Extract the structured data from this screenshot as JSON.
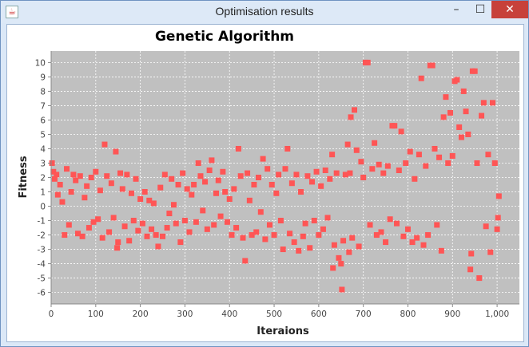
{
  "window": {
    "title": "Optimisation results",
    "minimize_symbol": "–",
    "maximize_symbol": "☐",
    "close_symbol": "✕",
    "app_icon": "java-icon"
  },
  "colors": {
    "plot_bg": "#c0c0c0",
    "point": "#ff5555",
    "titlebar": "#dde9f7",
    "close_button": "#c7413a"
  },
  "chart_data": {
    "type": "scatter",
    "title": "Genetic Algorithm",
    "xlabel": "Iteraions",
    "ylabel": "Fitness",
    "xlim": [
      0,
      1050
    ],
    "ylim": [
      -6.8,
      10.8
    ],
    "x_ticks": [
      {
        "value": 0,
        "label": "0"
      },
      {
        "value": 100,
        "label": "100"
      },
      {
        "value": 200,
        "label": "200"
      },
      {
        "value": 300,
        "label": "300"
      },
      {
        "value": 400,
        "label": "400"
      },
      {
        "value": 500,
        "label": "500"
      },
      {
        "value": 600,
        "label": "600"
      },
      {
        "value": 700,
        "label": "700"
      },
      {
        "value": 800,
        "label": "800"
      },
      {
        "value": 900,
        "label": "900"
      },
      {
        "value": 1000,
        "label": "1,000"
      }
    ],
    "y_ticks": [
      {
        "value": 10,
        "label": "10"
      },
      {
        "value": 9,
        "label": "9"
      },
      {
        "value": 8,
        "label": "8"
      },
      {
        "value": 7,
        "label": "7"
      },
      {
        "value": 6,
        "label": "6"
      },
      {
        "value": 5,
        "label": "5"
      },
      {
        "value": 4,
        "label": "4"
      },
      {
        "value": 3,
        "label": "3"
      },
      {
        "value": 2,
        "label": "2"
      },
      {
        "value": 1,
        "label": "1"
      },
      {
        "value": 0,
        "label": "0"
      },
      {
        "value": -1,
        "label": "-1"
      },
      {
        "value": -2,
        "label": "-2"
      },
      {
        "value": -3,
        "label": "-3"
      },
      {
        "value": -4,
        "label": "-4"
      },
      {
        "value": -5,
        "label": "-5"
      },
      {
        "value": -6,
        "label": "-6"
      }
    ],
    "grid": true,
    "legend": "none",
    "points": [
      [
        2,
        3.0
      ],
      [
        5,
        2.4
      ],
      [
        8,
        1.9
      ],
      [
        12,
        2.2
      ],
      [
        15,
        0.8
      ],
      [
        20,
        1.5
      ],
      [
        25,
        0.3
      ],
      [
        30,
        -2.0
      ],
      [
        35,
        2.6
      ],
      [
        40,
        -1.3
      ],
      [
        45,
        1.0
      ],
      [
        50,
        2.2
      ],
      [
        55,
        1.8
      ],
      [
        60,
        -1.9
      ],
      [
        65,
        2.1
      ],
      [
        70,
        -2.1
      ],
      [
        75,
        0.6
      ],
      [
        80,
        1.4
      ],
      [
        85,
        -1.5
      ],
      [
        90,
        2.0
      ],
      [
        95,
        -1.1
      ],
      [
        100,
        2.4
      ],
      [
        105,
        -0.9
      ],
      [
        110,
        1.1
      ],
      [
        115,
        -2.2
      ],
      [
        120,
        4.3
      ],
      [
        125,
        2.1
      ],
      [
        130,
        -1.8
      ],
      [
        135,
        1.6
      ],
      [
        140,
        -0.8
      ],
      [
        145,
        3.8
      ],
      [
        148,
        -2.9
      ],
      [
        150,
        -2.5
      ],
      [
        155,
        2.3
      ],
      [
        160,
        1.2
      ],
      [
        165,
        -1.4
      ],
      [
        170,
        2.2
      ],
      [
        175,
        -2.4
      ],
      [
        180,
        0.9
      ],
      [
        185,
        -1.0
      ],
      [
        190,
        1.9
      ],
      [
        195,
        -1.7
      ],
      [
        200,
        0.5
      ],
      [
        205,
        -1.2
      ],
      [
        210,
        1.0
      ],
      [
        215,
        -2.1
      ],
      [
        220,
        0.4
      ],
      [
        225,
        -1.6
      ],
      [
        230,
        0.2
      ],
      [
        235,
        -2.0
      ],
      [
        240,
        -2.8
      ],
      [
        245,
        1.3
      ],
      [
        250,
        -2.1
      ],
      [
        255,
        2.2
      ],
      [
        260,
        -1.5
      ],
      [
        265,
        -0.5
      ],
      [
        270,
        1.9
      ],
      [
        275,
        0.1
      ],
      [
        280,
        -1.2
      ],
      [
        285,
        1.5
      ],
      [
        290,
        -2.5
      ],
      [
        295,
        2.3
      ],
      [
        300,
        -1.0
      ],
      [
        305,
        1.2
      ],
      [
        310,
        -1.8
      ],
      [
        315,
        0.8
      ],
      [
        320,
        1.5
      ],
      [
        325,
        -1.1
      ],
      [
        330,
        3.0
      ],
      [
        335,
        2.1
      ],
      [
        340,
        -0.3
      ],
      [
        345,
        1.7
      ],
      [
        350,
        -1.6
      ],
      [
        355,
        2.5
      ],
      [
        360,
        3.2
      ],
      [
        365,
        -1.3
      ],
      [
        370,
        0.9
      ],
      [
        375,
        1.8
      ],
      [
        380,
        -0.7
      ],
      [
        385,
        2.4
      ],
      [
        390,
        1.0
      ],
      [
        395,
        -1.1
      ],
      [
        400,
        0.5
      ],
      [
        405,
        -2.0
      ],
      [
        410,
        1.2
      ],
      [
        415,
        -1.5
      ],
      [
        420,
        4.0
      ],
      [
        425,
        2.1
      ],
      [
        430,
        -2.2
      ],
      [
        435,
        -3.8
      ],
      [
        440,
        2.3
      ],
      [
        445,
        0.4
      ],
      [
        450,
        -2.0
      ],
      [
        455,
        1.5
      ],
      [
        460,
        -1.8
      ],
      [
        465,
        2.0
      ],
      [
        470,
        -0.4
      ],
      [
        475,
        3.3
      ],
      [
        480,
        -2.3
      ],
      [
        485,
        2.6
      ],
      [
        490,
        -1.3
      ],
      [
        495,
        1.5
      ],
      [
        500,
        -2.0
      ],
      [
        505,
        0.9
      ],
      [
        510,
        2.2
      ],
      [
        515,
        -1.0
      ],
      [
        520,
        -3.0
      ],
      [
        525,
        2.6
      ],
      [
        530,
        4.0
      ],
      [
        535,
        -1.9
      ],
      [
        540,
        1.6
      ],
      [
        545,
        -2.5
      ],
      [
        550,
        2.2
      ],
      [
        555,
        -3.1
      ],
      [
        560,
        1.0
      ],
      [
        565,
        -2.1
      ],
      [
        570,
        -1.2
      ],
      [
        575,
        2.1
      ],
      [
        580,
        -2.9
      ],
      [
        585,
        1.7
      ],
      [
        590,
        -1.0
      ],
      [
        595,
        2.4
      ],
      [
        600,
        -2.0
      ],
      [
        605,
        1.4
      ],
      [
        610,
        -1.6
      ],
      [
        615,
        2.5
      ],
      [
        620,
        -0.8
      ],
      [
        625,
        1.9
      ],
      [
        630,
        3.6
      ],
      [
        632,
        -4.3
      ],
      [
        635,
        -2.7
      ],
      [
        640,
        2.3
      ],
      [
        645,
        -3.6
      ],
      [
        650,
        -4.0
      ],
      [
        652,
        -5.8
      ],
      [
        655,
        -2.4
      ],
      [
        660,
        2.2
      ],
      [
        665,
        4.3
      ],
      [
        668,
        -3.2
      ],
      [
        670,
        2.3
      ],
      [
        672,
        6.2
      ],
      [
        675,
        -2.2
      ],
      [
        680,
        6.7
      ],
      [
        685,
        3.9
      ],
      [
        690,
        -2.8
      ],
      [
        695,
        3.1
      ],
      [
        700,
        2.0
      ],
      [
        705,
        10.0
      ],
      [
        710,
        10.0
      ],
      [
        715,
        -1.3
      ],
      [
        720,
        2.6
      ],
      [
        725,
        4.4
      ],
      [
        730,
        -2.0
      ],
      [
        735,
        2.9
      ],
      [
        740,
        -1.8
      ],
      [
        745,
        2.3
      ],
      [
        750,
        -2.5
      ],
      [
        755,
        2.8
      ],
      [
        760,
        -0.9
      ],
      [
        765,
        5.6
      ],
      [
        770,
        5.6
      ],
      [
        775,
        -1.2
      ],
      [
        780,
        2.5
      ],
      [
        785,
        5.2
      ],
      [
        790,
        -2.1
      ],
      [
        795,
        3.0
      ],
      [
        800,
        -1.6
      ],
      [
        805,
        3.8
      ],
      [
        810,
        -2.5
      ],
      [
        815,
        1.9
      ],
      [
        820,
        -2.2
      ],
      [
        825,
        3.6
      ],
      [
        830,
        8.9
      ],
      [
        835,
        -2.7
      ],
      [
        840,
        2.8
      ],
      [
        845,
        -2.0
      ],
      [
        850,
        9.8
      ],
      [
        855,
        9.8
      ],
      [
        860,
        4.0
      ],
      [
        865,
        -1.3
      ],
      [
        870,
        3.4
      ],
      [
        875,
        -3.1
      ],
      [
        880,
        6.2
      ],
      [
        885,
        7.6
      ],
      [
        890,
        3.0
      ],
      [
        895,
        6.5
      ],
      [
        900,
        3.5
      ],
      [
        905,
        8.7
      ],
      [
        910,
        8.8
      ],
      [
        915,
        5.5
      ],
      [
        920,
        4.8
      ],
      [
        925,
        8.0
      ],
      [
        930,
        6.6
      ],
      [
        935,
        5.0
      ],
      [
        940,
        -4.4
      ],
      [
        942,
        -3.3
      ],
      [
        945,
        9.4
      ],
      [
        950,
        9.4
      ],
      [
        955,
        3.0
      ],
      [
        960,
        -5.0
      ],
      [
        965,
        6.3
      ],
      [
        970,
        7.2
      ],
      [
        975,
        -1.4
      ],
      [
        980,
        3.6
      ],
      [
        985,
        -3.2
      ],
      [
        990,
        7.2
      ],
      [
        995,
        3.0
      ],
      [
        1000,
        -1.6
      ],
      [
        1002,
        -0.8
      ],
      [
        1004,
        0.7
      ]
    ]
  }
}
